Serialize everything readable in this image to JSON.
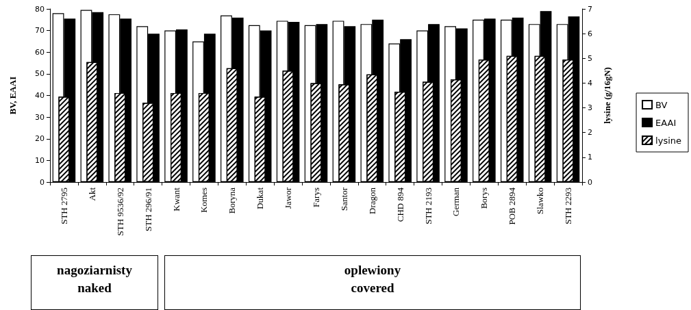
{
  "chart_data": {
    "type": "bar",
    "categories": [
      "STH 2795",
      "Akt",
      "STH 9536/92",
      "STH 296/91",
      "Kwant",
      "Komes",
      "Boryna",
      "Dukat",
      "Jawor",
      "Farys",
      "Santor",
      "Dragon",
      "CHD 894",
      "STH 2193",
      "German",
      "Borys",
      "POB 2894",
      "Slawko",
      "STH 2293"
    ],
    "series": [
      {
        "name": "BV",
        "color": "#ffffff",
        "values": [
          78,
          79.5,
          77.5,
          72,
          70,
          65,
          77,
          72.5,
          74.5,
          72.5,
          74.5,
          73,
          64,
          70,
          72,
          75,
          75,
          73,
          73
        ]
      },
      {
        "name": "EAAI",
        "color": "#000000",
        "values": [
          75.5,
          78.5,
          75.5,
          68.5,
          70.5,
          68.5,
          76,
          70,
          74,
          73,
          72,
          75,
          66,
          73,
          71,
          75.5,
          76,
          79,
          76.5
        ]
      },
      {
        "name": "lysine",
        "color": "#ffffff",
        "type": "bar",
        "axis": "y2",
        "values": [
          3.45,
          4.85,
          3.6,
          3.2,
          3.6,
          3.6,
          4.6,
          3.45,
          4.5,
          4,
          3.95,
          4.35,
          3.65,
          4.05,
          4.15,
          4.95,
          5.1,
          5.1,
          4.95
        ]
      }
    ],
    "ylabel": "BV, EAAI",
    "y2label": "lysine (g/16gN)",
    "ylim": [
      0,
      80
    ],
    "yticks": [
      0,
      10,
      20,
      30,
      40,
      50,
      60,
      70,
      80
    ],
    "y2lim": [
      0,
      7
    ],
    "y2ticks": [
      0,
      1,
      2,
      3,
      4,
      5,
      6,
      7
    ],
    "legend": "right",
    "grid": false,
    "annotations": [
      "nagoziarnisty\nnaked",
      "oplewiony\ncovered"
    ]
  }
}
